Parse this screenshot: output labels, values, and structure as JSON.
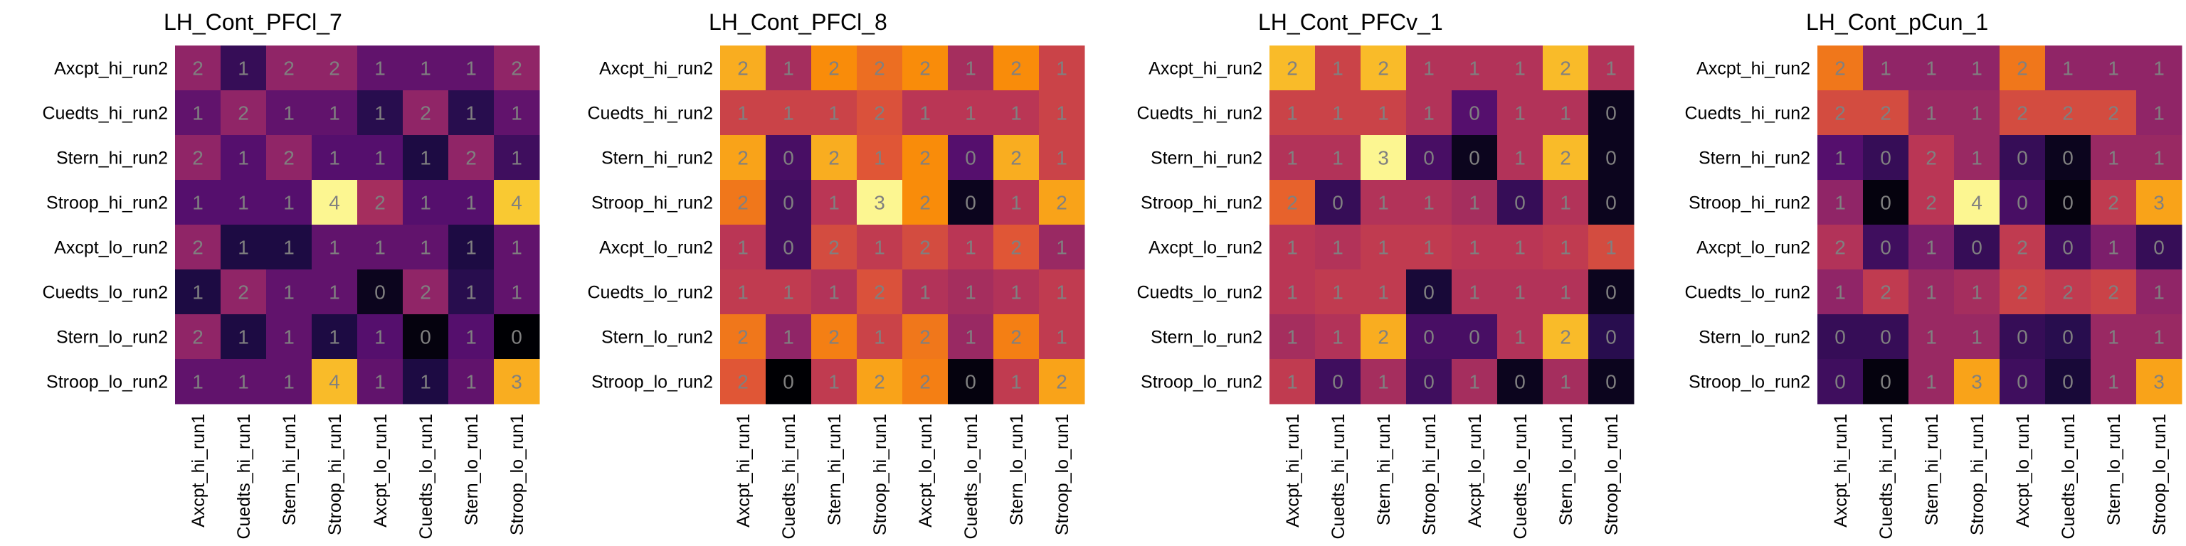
{
  "rows": [
    "Axcpt_hi_run2",
    "Cuedts_hi_run2",
    "Stern_hi_run2",
    "Stroop_hi_run2",
    "Axcpt_lo_run2",
    "Cuedts_lo_run2",
    "Stern_lo_run2",
    "Stroop_lo_run2"
  ],
  "cols": [
    "Axcpt_hi_run1",
    "Cuedts_hi_run1",
    "Stern_hi_run1",
    "Stroop_hi_run1",
    "Axcpt_lo_run1",
    "Cuedts_lo_run1",
    "Stern_lo_run1",
    "Stroop_lo_run1"
  ],
  "chart_data": [
    {
      "type": "heatmap",
      "title": "LH_Cont_PFCl_7",
      "colormap": "inferno",
      "labels": [
        [
          2,
          1,
          2,
          2,
          1,
          1,
          1,
          2
        ],
        [
          1,
          2,
          1,
          1,
          1,
          2,
          1,
          1
        ],
        [
          2,
          1,
          2,
          1,
          1,
          1,
          2,
          1
        ],
        [
          1,
          1,
          1,
          4,
          2,
          1,
          1,
          4
        ],
        [
          2,
          1,
          1,
          1,
          1,
          1,
          1,
          1
        ],
        [
          1,
          2,
          1,
          1,
          0,
          2,
          1,
          1
        ],
        [
          2,
          1,
          1,
          1,
          1,
          0,
          1,
          0
        ],
        [
          1,
          1,
          1,
          4,
          1,
          1,
          1,
          3
        ]
      ],
      "values": [
        [
          0.4,
          0.18,
          0.4,
          0.4,
          0.28,
          0.28,
          0.28,
          0.4
        ],
        [
          0.28,
          0.4,
          0.28,
          0.28,
          0.15,
          0.4,
          0.15,
          0.28
        ],
        [
          0.4,
          0.25,
          0.4,
          0.25,
          0.25,
          0.12,
          0.4,
          0.2
        ],
        [
          0.25,
          0.25,
          0.25,
          0.98,
          0.45,
          0.25,
          0.25,
          0.88
        ],
        [
          0.4,
          0.12,
          0.12,
          0.28,
          0.28,
          0.28,
          0.12,
          0.28
        ],
        [
          0.12,
          0.4,
          0.28,
          0.28,
          0.05,
          0.4,
          0.15,
          0.28
        ],
        [
          0.4,
          0.12,
          0.28,
          0.12,
          0.25,
          0.02,
          0.25,
          0.0
        ],
        [
          0.28,
          0.28,
          0.28,
          0.85,
          0.28,
          0.12,
          0.28,
          0.82
        ]
      ]
    },
    {
      "type": "heatmap",
      "title": "LH_Cont_PFCl_8",
      "colormap": "inferno",
      "labels": [
        [
          2,
          1,
          2,
          2,
          2,
          1,
          2,
          1
        ],
        [
          1,
          1,
          1,
          2,
          1,
          1,
          1,
          1
        ],
        [
          2,
          0,
          2,
          1,
          2,
          0,
          2,
          1
        ],
        [
          2,
          0,
          1,
          3,
          2,
          0,
          1,
          2
        ],
        [
          1,
          0,
          2,
          1,
          2,
          1,
          2,
          1
        ],
        [
          1,
          1,
          1,
          2,
          1,
          1,
          1,
          1
        ],
        [
          2,
          1,
          2,
          1,
          2,
          1,
          2,
          1
        ],
        [
          2,
          0,
          1,
          2,
          2,
          0,
          1,
          2
        ]
      ],
      "values": [
        [
          0.82,
          0.45,
          0.75,
          0.68,
          0.75,
          0.45,
          0.75,
          0.55
        ],
        [
          0.55,
          0.55,
          0.55,
          0.6,
          0.5,
          0.5,
          0.5,
          0.55
        ],
        [
          0.8,
          0.22,
          0.82,
          0.62,
          0.75,
          0.25,
          0.82,
          0.55
        ],
        [
          0.7,
          0.2,
          0.5,
          0.98,
          0.75,
          0.05,
          0.5,
          0.8
        ],
        [
          0.5,
          0.2,
          0.58,
          0.52,
          0.58,
          0.5,
          0.62,
          0.42
        ],
        [
          0.52,
          0.52,
          0.48,
          0.6,
          0.48,
          0.45,
          0.48,
          0.52
        ],
        [
          0.7,
          0.4,
          0.72,
          0.55,
          0.7,
          0.42,
          0.72,
          0.52
        ],
        [
          0.62,
          0.0,
          0.52,
          0.8,
          0.72,
          0.02,
          0.52,
          0.8
        ]
      ]
    },
    {
      "type": "heatmap",
      "title": "LH_Cont_PFCv_1",
      "colormap": "inferno",
      "labels": [
        [
          2,
          1,
          2,
          1,
          1,
          1,
          2,
          1
        ],
        [
          1,
          1,
          1,
          1,
          0,
          1,
          1,
          0
        ],
        [
          1,
          1,
          3,
          0,
          0,
          1,
          2,
          0
        ],
        [
          2,
          0,
          1,
          1,
          1,
          0,
          1,
          0
        ],
        [
          1,
          1,
          1,
          1,
          1,
          1,
          1,
          1
        ],
        [
          1,
          1,
          1,
          0,
          1,
          1,
          1,
          0
        ],
        [
          1,
          1,
          2,
          0,
          0,
          1,
          2,
          0
        ],
        [
          1,
          0,
          1,
          0,
          1,
          0,
          1,
          0
        ]
      ],
      "values": [
        [
          0.85,
          0.55,
          0.85,
          0.48,
          0.48,
          0.48,
          0.85,
          0.48
        ],
        [
          0.55,
          0.55,
          0.55,
          0.48,
          0.25,
          0.48,
          0.48,
          0.05
        ],
        [
          0.48,
          0.48,
          0.98,
          0.22,
          0.05,
          0.48,
          0.85,
          0.05
        ],
        [
          0.65,
          0.18,
          0.48,
          0.48,
          0.45,
          0.18,
          0.48,
          0.05
        ],
        [
          0.5,
          0.48,
          0.52,
          0.52,
          0.5,
          0.5,
          0.52,
          0.58
        ],
        [
          0.5,
          0.52,
          0.52,
          0.1,
          0.48,
          0.48,
          0.48,
          0.05
        ],
        [
          0.45,
          0.48,
          0.82,
          0.22,
          0.22,
          0.48,
          0.85,
          0.15
        ],
        [
          0.52,
          0.2,
          0.45,
          0.2,
          0.45,
          0.05,
          0.45,
          0.05
        ]
      ]
    },
    {
      "type": "heatmap",
      "title": "LH_Cont_pCun_1",
      "colormap": "inferno",
      "labels": [
        [
          2,
          1,
          1,
          1,
          2,
          1,
          1,
          1
        ],
        [
          2,
          2,
          1,
          1,
          2,
          2,
          2,
          1
        ],
        [
          1,
          0,
          2,
          1,
          0,
          0,
          1,
          1
        ],
        [
          1,
          0,
          2,
          4,
          0,
          0,
          2,
          3
        ],
        [
          2,
          0,
          1,
          0,
          2,
          0,
          1,
          0
        ],
        [
          1,
          2,
          1,
          1,
          2,
          2,
          2,
          1
        ],
        [
          0,
          0,
          1,
          1,
          0,
          0,
          1,
          1
        ],
        [
          0,
          0,
          1,
          3,
          0,
          0,
          1,
          3
        ]
      ],
      "values": [
        [
          0.7,
          0.4,
          0.4,
          0.4,
          0.7,
          0.4,
          0.4,
          0.4
        ],
        [
          0.58,
          0.58,
          0.42,
          0.42,
          0.58,
          0.58,
          0.58,
          0.4
        ],
        [
          0.25,
          0.18,
          0.5,
          0.42,
          0.18,
          0.05,
          0.42,
          0.42
        ],
        [
          0.4,
          0.02,
          0.5,
          0.98,
          0.22,
          0.02,
          0.52,
          0.8
        ],
        [
          0.48,
          0.2,
          0.35,
          0.18,
          0.52,
          0.2,
          0.35,
          0.18
        ],
        [
          0.4,
          0.52,
          0.42,
          0.45,
          0.55,
          0.52,
          0.55,
          0.4
        ],
        [
          0.18,
          0.18,
          0.42,
          0.42,
          0.18,
          0.15,
          0.42,
          0.42
        ],
        [
          0.2,
          0.02,
          0.42,
          0.8,
          0.2,
          0.1,
          0.42,
          0.8
        ]
      ]
    }
  ]
}
